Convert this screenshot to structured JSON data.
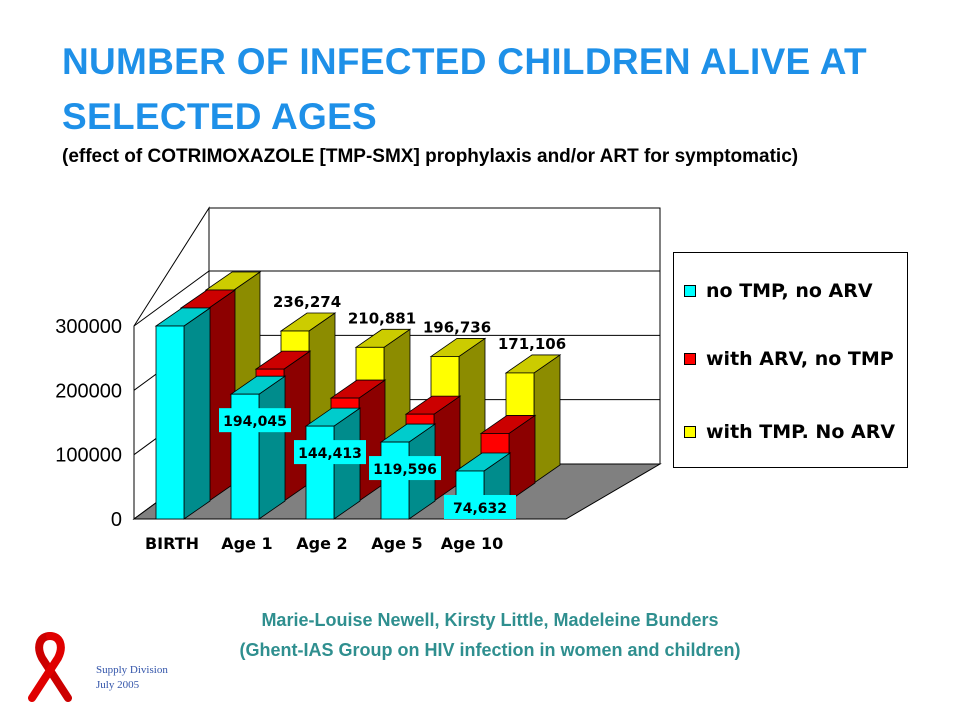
{
  "slide": {
    "title": "NUMBER OF INFECTED CHILDREN ALIVE AT SELECTED AGES",
    "subtitle": "(effect of COTRIMOXAZOLE [TMP-SMX] prophylaxis and/or ART for symptomatic)",
    "credit_line1": "Marie-Louise Newell, Kirsty Little, Madeleine Bunders",
    "credit_line2": "(Ghent-IAS Group on HIV infection in women and children)",
    "footer_line1": "Supply Division",
    "footer_line2": "July 2005",
    "ribbon_icon": "red-ribbon-icon"
  },
  "chart_data": {
    "type": "bar",
    "categories": [
      "BIRTH",
      "Age 1",
      "Age 2",
      "Age 5",
      "Age 10"
    ],
    "series": [
      {
        "name": "no TMP, no ARV",
        "color": "#00FFFF",
        "values": [
          300000,
          194045,
          144413,
          119596,
          74632
        ]
      },
      {
        "name": "with ARV, no TMP",
        "color": "#FF0000",
        "values": [
          300000,
          205000,
          160000,
          135000,
          105000
        ]
      },
      {
        "name": "with TMP. No ARV",
        "color": "#FFFF00",
        "values": [
          300000,
          236274,
          210881,
          196736,
          171106
        ]
      }
    ],
    "data_labels": {
      "no TMP, no ARV": [
        "",
        "194,045",
        "144,413",
        "119,596",
        "74,632"
      ],
      "with TMP. No ARV": [
        "",
        "236,274",
        "210,881",
        "196,736",
        "171,106"
      ]
    },
    "y_ticks": [
      0,
      100000,
      200000,
      300000
    ],
    "ylim": [
      0,
      300000
    ],
    "grid": true,
    "legend_position": "right",
    "style": "3d-clustered-bar"
  }
}
